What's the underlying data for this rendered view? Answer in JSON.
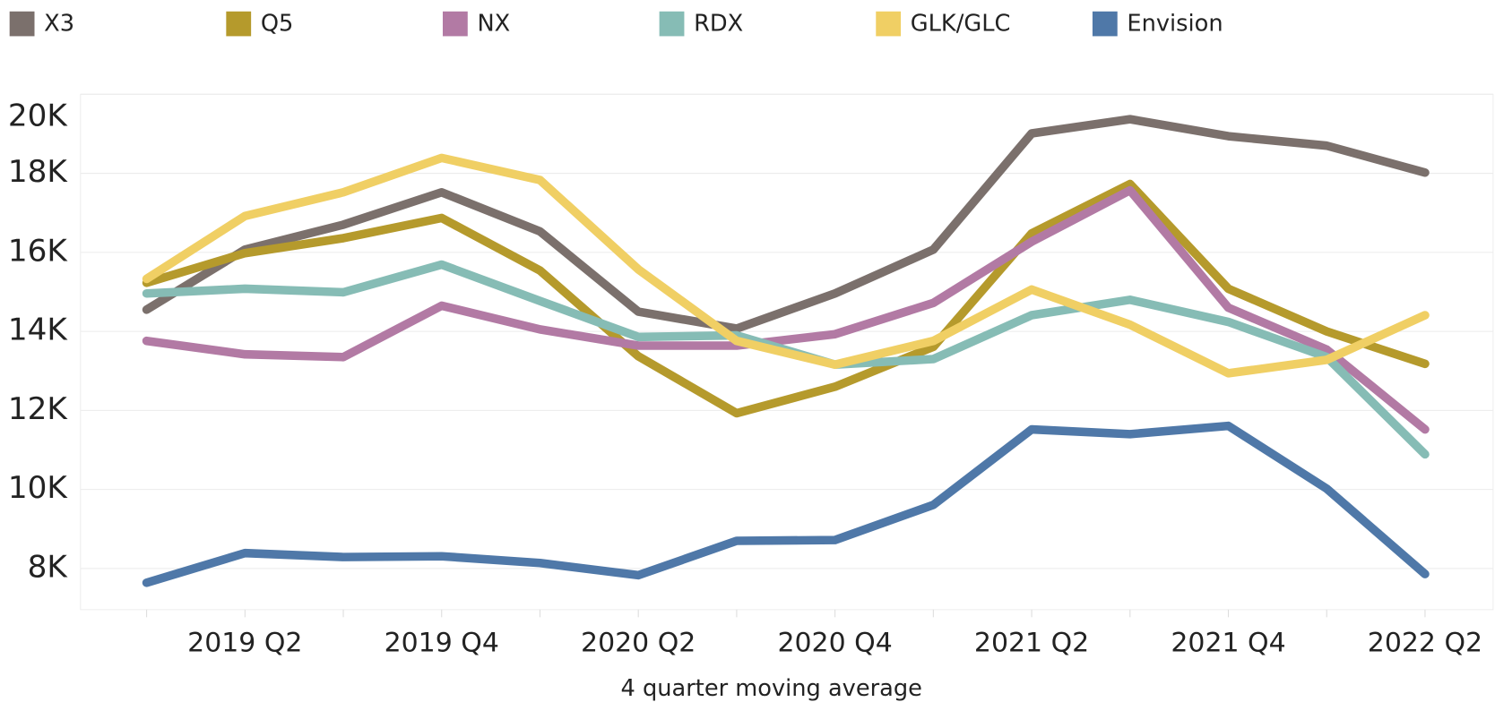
{
  "chart_data": {
    "type": "line",
    "x_label": "4 quarter moving average",
    "categories": [
      null,
      "2019 Q2",
      null,
      "2019 Q4",
      null,
      "2020 Q2",
      null,
      "2020 Q4",
      null,
      "2021 Q2",
      null,
      "2021 Q4",
      null,
      "2022 Q2"
    ],
    "series": [
      {
        "name": "X3",
        "color": "#7b706c",
        "values": [
          14550,
          16070,
          16700,
          17520,
          16530,
          14500,
          14070,
          14960,
          16070,
          19010,
          19370,
          18940,
          18700,
          18020
        ]
      },
      {
        "name": "Q5",
        "color": "#b59a2c",
        "values": [
          15230,
          15980,
          16360,
          16870,
          15540,
          13370,
          11930,
          12600,
          13610,
          16480,
          17730,
          15080,
          14000,
          13180
        ]
      },
      {
        "name": "NX",
        "color": "#b27aa4",
        "values": [
          13760,
          13420,
          13350,
          14650,
          14050,
          13640,
          13640,
          13930,
          14720,
          16270,
          17570,
          14600,
          13540,
          11520
        ]
      },
      {
        "name": "RDX",
        "color": "#86bcb5",
        "values": [
          14960,
          15080,
          14990,
          15690,
          14770,
          13860,
          13900,
          13160,
          13300,
          14410,
          14800,
          14240,
          13350,
          10890
        ]
      },
      {
        "name": "GLK/GLC",
        "color": "#f0cf64",
        "values": [
          15330,
          16920,
          17520,
          18390,
          17830,
          15570,
          13760,
          13160,
          13760,
          15060,
          14170,
          12940,
          13280,
          14410
        ]
      },
      {
        "name": "Envision",
        "color": "#4f78a8",
        "values": [
          7640,
          8390,
          8290,
          8310,
          8140,
          7830,
          8700,
          8720,
          9610,
          11520,
          11400,
          11610,
          10020,
          7860
        ]
      }
    ],
    "ylim": [
      6960,
      20000
    ],
    "yticks": [
      {
        "value": 8000,
        "label": "8K"
      },
      {
        "value": 10000,
        "label": "10K"
      },
      {
        "value": 12000,
        "label": "12K"
      },
      {
        "value": 14000,
        "label": "14K"
      },
      {
        "value": 16000,
        "label": "16K"
      },
      {
        "value": 18000,
        "label": "18K"
      },
      {
        "value": 20000,
        "label": "20K"
      }
    ],
    "grid": true
  }
}
